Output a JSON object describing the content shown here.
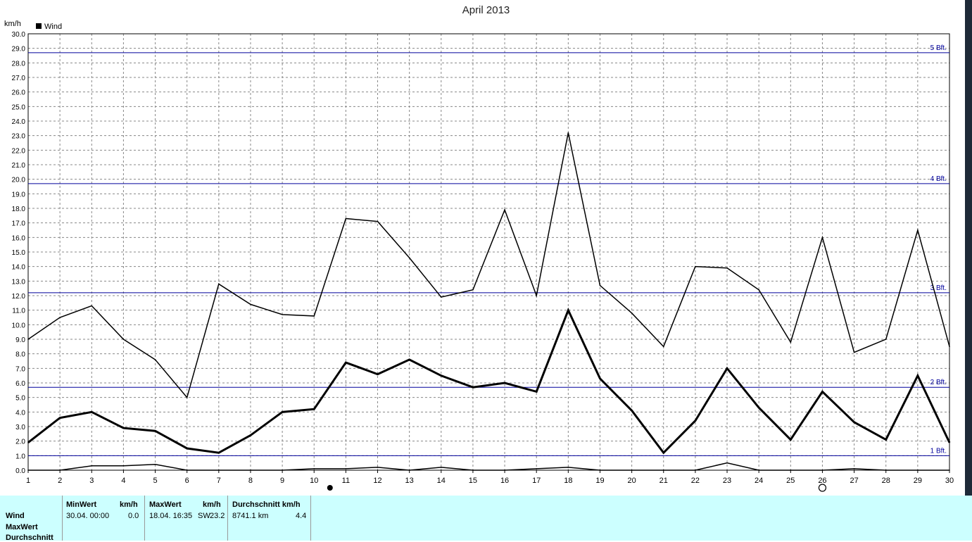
{
  "chart_data": {
    "type": "line",
    "title": "April 2013",
    "ylabel": "km/h",
    "xlabel": "",
    "legend": "top-left",
    "grid": true,
    "x": [
      1,
      2,
      3,
      4,
      5,
      6,
      7,
      8,
      9,
      10,
      11,
      12,
      13,
      14,
      15,
      16,
      17,
      18,
      19,
      20,
      21,
      22,
      23,
      24,
      25,
      26,
      27,
      28,
      29,
      30
    ],
    "xlim": [
      1,
      30
    ],
    "ylim": [
      0,
      30
    ],
    "y_ticks": [
      "0.0",
      "1.0",
      "2.0",
      "3.0",
      "4.0",
      "5.0",
      "6.0",
      "7.0",
      "8.0",
      "9.0",
      "10.0",
      "11.0",
      "12.0",
      "13.0",
      "14.0",
      "15.0",
      "16.0",
      "17.0",
      "18.0",
      "19.0",
      "20.0",
      "21.0",
      "22.0",
      "23.0",
      "24.0",
      "25.0",
      "26.0",
      "27.0",
      "28.0",
      "29.0",
      "30.0"
    ],
    "legend_label": "Wind",
    "series": [
      {
        "role": "max",
        "values": [
          9.0,
          10.5,
          11.3,
          9.0,
          7.6,
          5.0,
          12.8,
          11.4,
          10.7,
          10.6,
          17.3,
          17.1,
          14.6,
          11.9,
          12.4,
          17.9,
          12.0,
          23.2,
          12.7,
          10.8,
          8.5,
          14.0,
          13.9,
          12.4,
          8.8,
          16.0,
          8.1,
          9.0,
          16.5,
          8.5
        ]
      },
      {
        "role": "avg",
        "values": [
          1.9,
          3.6,
          4.0,
          2.9,
          2.7,
          1.5,
          1.2,
          2.4,
          4.0,
          4.2,
          7.4,
          6.6,
          7.6,
          6.5,
          5.7,
          6.0,
          5.4,
          11.0,
          6.3,
          4.1,
          1.2,
          3.4,
          7.0,
          4.3,
          2.1,
          5.4,
          3.3,
          2.1,
          6.5,
          1.9
        ]
      },
      {
        "role": "min",
        "values": [
          0.0,
          0.0,
          0.3,
          0.3,
          0.4,
          0.0,
          0.0,
          0.0,
          0.0,
          0.1,
          0.1,
          0.2,
          0.0,
          0.2,
          0.0,
          0.0,
          0.1,
          0.2,
          0.0,
          0.0,
          0.0,
          0.0,
          0.5,
          0.0,
          0.0,
          0.0,
          0.1,
          0.0,
          0.0,
          0.0
        ]
      }
    ],
    "reference_lines": [
      {
        "label": "1 Bft.",
        "value": 1.0
      },
      {
        "label": "2 Bft.",
        "value": 5.7
      },
      {
        "label": "3 Bft.",
        "value": 12.2
      },
      {
        "label": "4 Bft.",
        "value": 19.7
      },
      {
        "label": "5 Bft.",
        "value": 28.7
      }
    ],
    "markers": [
      {
        "type": "full-moon",
        "x": 10.5
      },
      {
        "type": "new-moon",
        "x": 26
      }
    ],
    "colors": {
      "series": "#000000",
      "grid": "#888888",
      "reference": "#00009c",
      "panel": "#ccffff"
    }
  },
  "stats": {
    "row_labels": [
      "Wind",
      "MaxWert",
      "Durchschnitt"
    ],
    "min": {
      "header": "MinWert",
      "unit": "km/h",
      "datetime": "30.04.  00:00",
      "value": "0.0"
    },
    "max": {
      "header": "MaxWert",
      "unit": "km/h",
      "datetime": "18.04.  16:35",
      "direction": "SW",
      "value": "23.2"
    },
    "avg": {
      "header": "Durchschnitt km/h",
      "distance": "8741.1 km",
      "value": "4.4"
    }
  }
}
